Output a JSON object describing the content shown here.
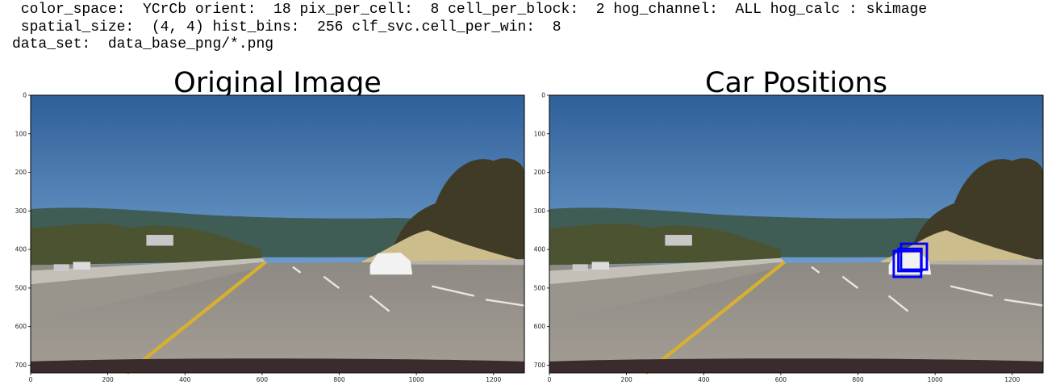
{
  "output_lines": [
    " color_space:  YCrCb orient:  18 pix_per_cell:  8 cell_per_block:  2 hog_channel:  ALL hog_calc : skimage",
    " spatial_size:  (4, 4) hist_bins:  256 clf_svc.cell_per_win:  8",
    "data_set:  data_base_png/*.png"
  ],
  "panels": [
    {
      "title": "Original Image",
      "xlim": [
        0,
        1280
      ],
      "ylim": [
        0,
        720
      ],
      "y_inverted": true,
      "xticks": [
        0,
        200,
        400,
        600,
        800,
        1000,
        1200
      ],
      "yticks": [
        0,
        100,
        200,
        300,
        400,
        500,
        600,
        700
      ]
    },
    {
      "title": "Car Positions",
      "xlim": [
        0,
        1280
      ],
      "ylim": [
        0,
        720
      ],
      "y_inverted": true,
      "xticks": [
        0,
        200,
        400,
        600,
        800,
        1000,
        1200
      ],
      "yticks": [
        0,
        100,
        200,
        300,
        400,
        500,
        600,
        700
      ]
    }
  ]
}
